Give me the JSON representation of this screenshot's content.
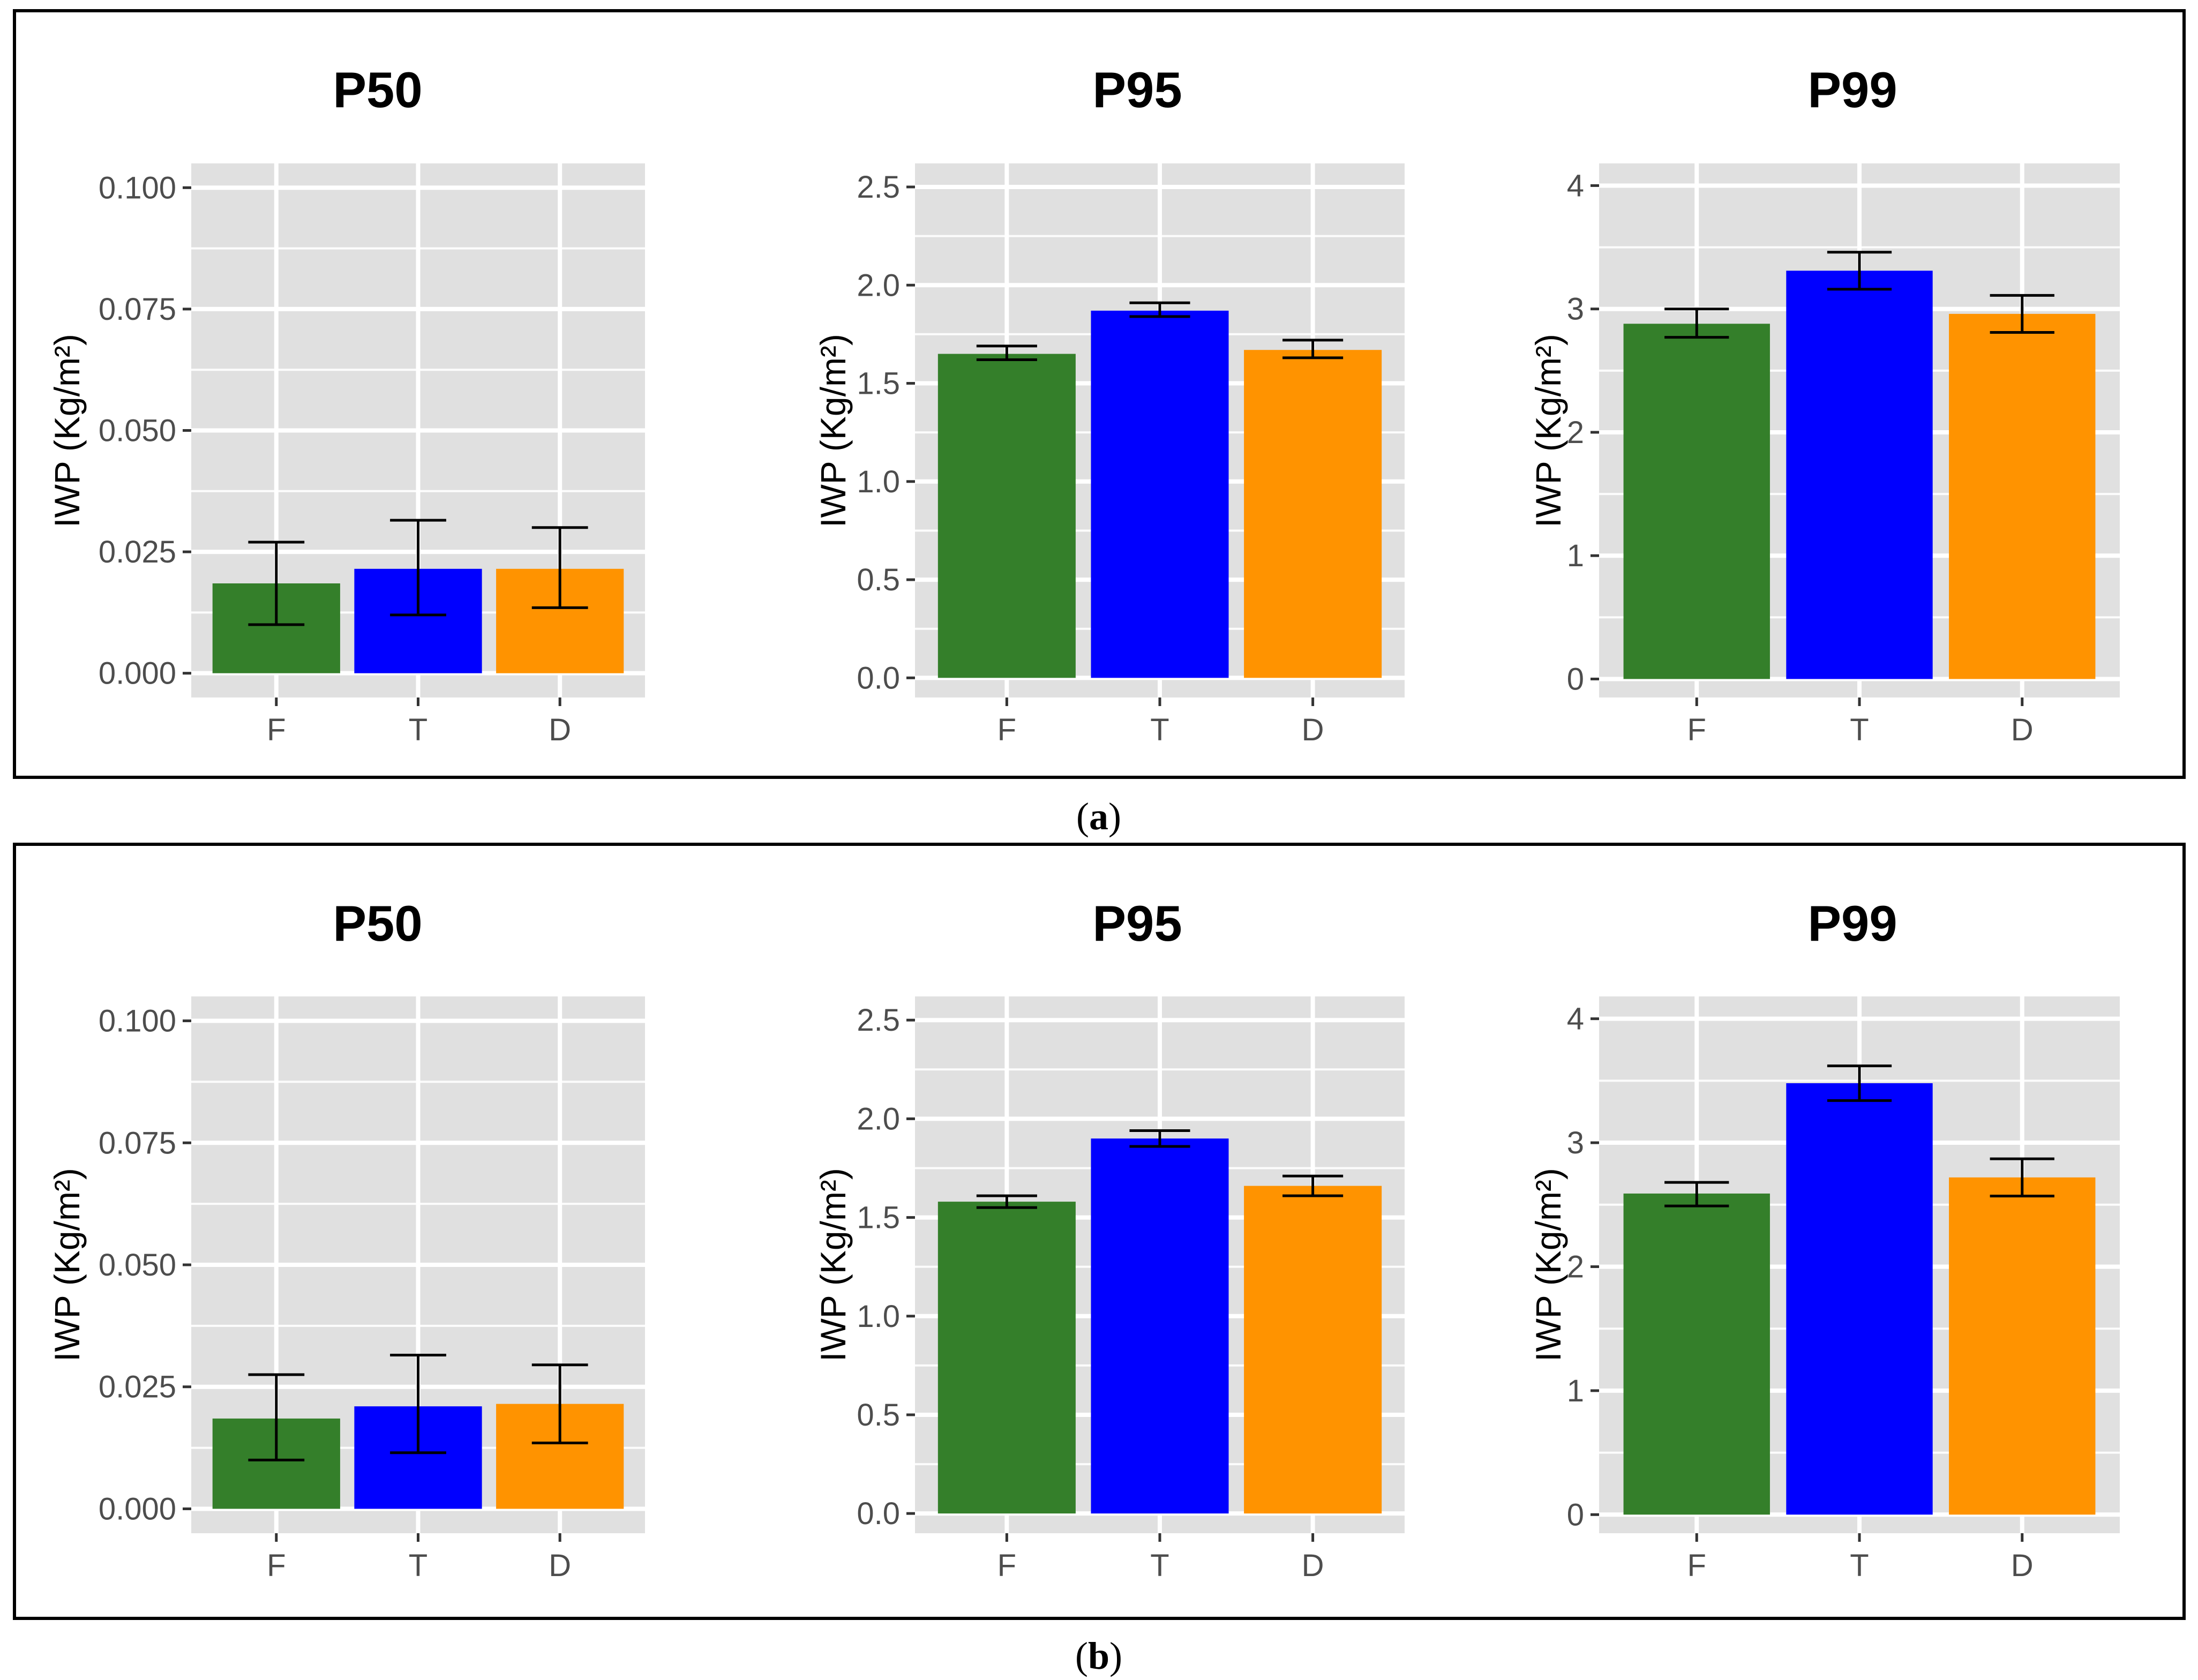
{
  "colors": {
    "F": "#347f2a",
    "T": "#0000ff",
    "D": "#ff9300",
    "panel_bg": "#e0e0e0",
    "grid": "#ffffff",
    "error_bar": "#000000",
    "tick_text": "#4d4d4d"
  },
  "captions": [
    {
      "open": "(",
      "letter": "a",
      "close": ")"
    },
    {
      "open": "(",
      "letter": "b",
      "close": ")"
    }
  ],
  "chart_data": [
    {
      "type": "bar",
      "group": "a",
      "title": "P50",
      "ylabel": "IWP (Kg/m²)",
      "categories": [
        "F",
        "T",
        "D"
      ],
      "values": [
        0.0185,
        0.0215,
        0.0215
      ],
      "error_low": [
        0.01,
        0.012,
        0.0135
      ],
      "error_high": [
        0.027,
        0.0315,
        0.03
      ],
      "ylim": [
        -0.005,
        0.105
      ],
      "yticks": [
        0.0,
        0.025,
        0.05,
        0.075,
        0.1
      ],
      "ytick_labels": [
        "0.000",
        "0.025",
        "0.050",
        "0.075",
        "0.100"
      ]
    },
    {
      "type": "bar",
      "group": "a",
      "title": "P95",
      "ylabel": "IWP (Kg/m²)",
      "categories": [
        "F",
        "T",
        "D"
      ],
      "values": [
        1.65,
        1.87,
        1.67
      ],
      "error_low": [
        1.62,
        1.84,
        1.63
      ],
      "error_high": [
        1.69,
        1.91,
        1.72
      ],
      "ylim": [
        -0.1,
        2.62
      ],
      "yticks": [
        0.0,
        0.5,
        1.0,
        1.5,
        2.0,
        2.5
      ],
      "ytick_labels": [
        "0.0",
        "0.5",
        "1.0",
        "1.5",
        "2.0",
        "2.5"
      ]
    },
    {
      "type": "bar",
      "group": "a",
      "title": "P99",
      "ylabel": "IWP (Kg/m²)",
      "categories": [
        "F",
        "T",
        "D"
      ],
      "values": [
        2.88,
        3.31,
        2.96
      ],
      "error_low": [
        2.77,
        3.16,
        2.81
      ],
      "error_high": [
        3.0,
        3.46,
        3.11
      ],
      "ylim": [
        -0.15,
        4.18
      ],
      "yticks": [
        0,
        1,
        2,
        3,
        4
      ],
      "ytick_labels": [
        "0",
        "1",
        "2",
        "3",
        "4"
      ]
    },
    {
      "type": "bar",
      "group": "b",
      "title": "P50",
      "ylabel": "IWP (Kg/m²)",
      "categories": [
        "F",
        "T",
        "D"
      ],
      "values": [
        0.0185,
        0.021,
        0.0215
      ],
      "error_low": [
        0.01,
        0.0115,
        0.0135
      ],
      "error_high": [
        0.0275,
        0.0315,
        0.0295
      ],
      "ylim": [
        -0.005,
        0.105
      ],
      "yticks": [
        0.0,
        0.025,
        0.05,
        0.075,
        0.1
      ],
      "ytick_labels": [
        "0.000",
        "0.025",
        "0.050",
        "0.075",
        "0.100"
      ]
    },
    {
      "type": "bar",
      "group": "b",
      "title": "P95",
      "ylabel": "IWP (Kg/m²)",
      "categories": [
        "F",
        "T",
        "D"
      ],
      "values": [
        1.58,
        1.9,
        1.66
      ],
      "error_low": [
        1.55,
        1.86,
        1.61
      ],
      "error_high": [
        1.61,
        1.94,
        1.71
      ],
      "ylim": [
        -0.1,
        2.62
      ],
      "yticks": [
        0.0,
        0.5,
        1.0,
        1.5,
        2.0,
        2.5
      ],
      "ytick_labels": [
        "0.0",
        "0.5",
        "1.0",
        "1.5",
        "2.0",
        "2.5"
      ]
    },
    {
      "type": "bar",
      "group": "b",
      "title": "P99",
      "ylabel": "IWP (Kg/m²)",
      "categories": [
        "F",
        "T",
        "D"
      ],
      "values": [
        2.59,
        3.48,
        2.72
      ],
      "error_low": [
        2.49,
        3.34,
        2.57
      ],
      "error_high": [
        2.68,
        3.62,
        2.87
      ],
      "ylim": [
        -0.15,
        4.18
      ],
      "yticks": [
        0,
        1,
        2,
        3,
        4
      ],
      "ytick_labels": [
        "0",
        "1",
        "2",
        "3",
        "4"
      ]
    }
  ]
}
